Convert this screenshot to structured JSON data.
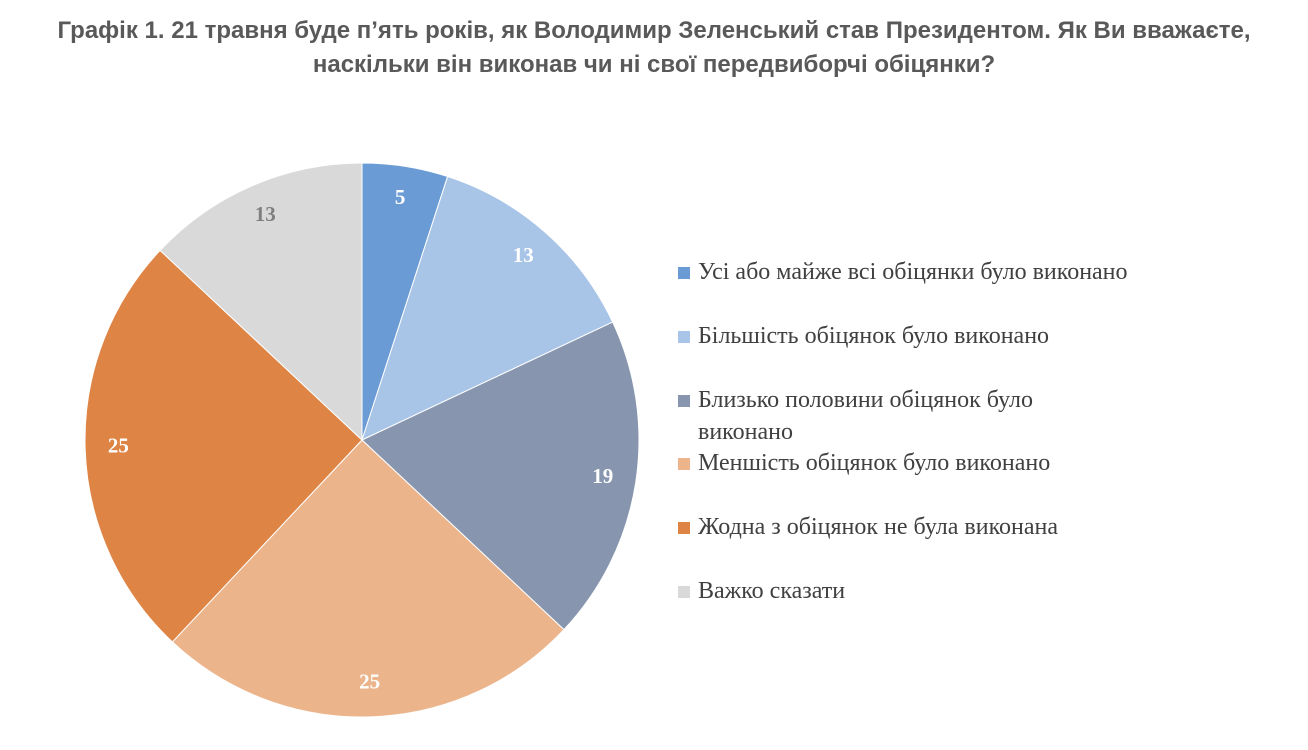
{
  "title": "Графік 1. 21 травня буде п’ять років, як Володимир Зеленський став Президентом. Як Ви вважаєте, наскільки він виконав чи ні свої передвиборчі обіцянки?",
  "chart_data": {
    "type": "pie",
    "legend_position": "right",
    "categories": [
      "Усі або майже всі обіцянки було виконано",
      "Більшість обіцянок було виконано",
      "Близько половини обіцянок було виконано",
      "Меншість обіцянок було виконано",
      "Жодна з обіцянок не була виконана",
      "Важко сказати"
    ],
    "values": [
      5,
      13,
      19,
      25,
      25,
      13
    ],
    "colors": [
      "#6a9bd4",
      "#a8c4e6",
      "#8796ae",
      "#ebb48b",
      "#de8444",
      "#d9d9d9"
    ],
    "label_colors": [
      "#ffffff",
      "#ffffff",
      "#ffffff",
      "#ffffff",
      "#ffffff",
      "#7f7f7f"
    ]
  }
}
